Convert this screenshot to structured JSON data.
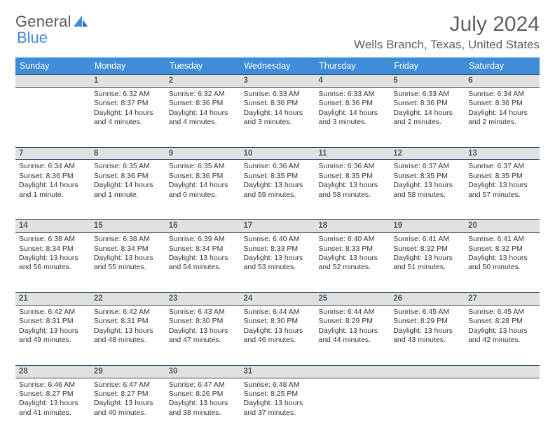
{
  "brand": {
    "part1": "General",
    "part2": "Blue"
  },
  "title": "July 2024",
  "location": "Wells Branch, Texas, United States",
  "colors": {
    "header_bg": "#3f8cd8",
    "header_text": "#ffffff",
    "daynum_bg": "#e1e1e1",
    "daynum_border": "#2b4b6e",
    "body_text": "#353535",
    "page_title": "#5b6166"
  },
  "dayNames": [
    "Sunday",
    "Monday",
    "Tuesday",
    "Wednesday",
    "Thursday",
    "Friday",
    "Saturday"
  ],
  "weeks": [
    {
      "nums": [
        "",
        "1",
        "2",
        "3",
        "4",
        "5",
        "6"
      ],
      "cells": [
        null,
        {
          "sr": "6:32 AM",
          "ss": "8:37 PM",
          "dl": "14 hours and 4 minutes."
        },
        {
          "sr": "6:32 AM",
          "ss": "8:36 PM",
          "dl": "14 hours and 4 minutes."
        },
        {
          "sr": "6:33 AM",
          "ss": "8:36 PM",
          "dl": "14 hours and 3 minutes."
        },
        {
          "sr": "6:33 AM",
          "ss": "8:36 PM",
          "dl": "14 hours and 3 minutes."
        },
        {
          "sr": "6:33 AM",
          "ss": "8:36 PM",
          "dl": "14 hours and 2 minutes."
        },
        {
          "sr": "6:34 AM",
          "ss": "8:36 PM",
          "dl": "14 hours and 2 minutes."
        }
      ]
    },
    {
      "nums": [
        "7",
        "8",
        "9",
        "10",
        "11",
        "12",
        "13"
      ],
      "cells": [
        {
          "sr": "6:34 AM",
          "ss": "8:36 PM",
          "dl": "14 hours and 1 minute."
        },
        {
          "sr": "6:35 AM",
          "ss": "8:36 PM",
          "dl": "14 hours and 1 minute."
        },
        {
          "sr": "6:35 AM",
          "ss": "8:36 PM",
          "dl": "14 hours and 0 minutes."
        },
        {
          "sr": "6:36 AM",
          "ss": "8:35 PM",
          "dl": "13 hours and 59 minutes."
        },
        {
          "sr": "6:36 AM",
          "ss": "8:35 PM",
          "dl": "13 hours and 58 minutes."
        },
        {
          "sr": "6:37 AM",
          "ss": "8:35 PM",
          "dl": "13 hours and 58 minutes."
        },
        {
          "sr": "6:37 AM",
          "ss": "8:35 PM",
          "dl": "13 hours and 57 minutes."
        }
      ]
    },
    {
      "nums": [
        "14",
        "15",
        "16",
        "17",
        "18",
        "19",
        "20"
      ],
      "cells": [
        {
          "sr": "6:38 AM",
          "ss": "8:34 PM",
          "dl": "13 hours and 56 minutes."
        },
        {
          "sr": "6:38 AM",
          "ss": "8:34 PM",
          "dl": "13 hours and 55 minutes."
        },
        {
          "sr": "6:39 AM",
          "ss": "8:34 PM",
          "dl": "13 hours and 54 minutes."
        },
        {
          "sr": "6:40 AM",
          "ss": "8:33 PM",
          "dl": "13 hours and 53 minutes."
        },
        {
          "sr": "6:40 AM",
          "ss": "8:33 PM",
          "dl": "13 hours and 52 minutes."
        },
        {
          "sr": "6:41 AM",
          "ss": "8:32 PM",
          "dl": "13 hours and 51 minutes."
        },
        {
          "sr": "6:41 AM",
          "ss": "8:32 PM",
          "dl": "13 hours and 50 minutes."
        }
      ]
    },
    {
      "nums": [
        "21",
        "22",
        "23",
        "24",
        "25",
        "26",
        "27"
      ],
      "cells": [
        {
          "sr": "6:42 AM",
          "ss": "8:31 PM",
          "dl": "13 hours and 49 minutes."
        },
        {
          "sr": "6:42 AM",
          "ss": "8:31 PM",
          "dl": "13 hours and 48 minutes."
        },
        {
          "sr": "6:43 AM",
          "ss": "8:30 PM",
          "dl": "13 hours and 47 minutes."
        },
        {
          "sr": "6:44 AM",
          "ss": "8:30 PM",
          "dl": "13 hours and 46 minutes."
        },
        {
          "sr": "6:44 AM",
          "ss": "8:29 PM",
          "dl": "13 hours and 44 minutes."
        },
        {
          "sr": "6:45 AM",
          "ss": "8:29 PM",
          "dl": "13 hours and 43 minutes."
        },
        {
          "sr": "6:45 AM",
          "ss": "8:28 PM",
          "dl": "13 hours and 42 minutes."
        }
      ]
    },
    {
      "nums": [
        "28",
        "29",
        "30",
        "31",
        "",
        "",
        ""
      ],
      "cells": [
        {
          "sr": "6:46 AM",
          "ss": "8:27 PM",
          "dl": "13 hours and 41 minutes."
        },
        {
          "sr": "6:47 AM",
          "ss": "8:27 PM",
          "dl": "13 hours and 40 minutes."
        },
        {
          "sr": "6:47 AM",
          "ss": "8:26 PM",
          "dl": "13 hours and 38 minutes."
        },
        {
          "sr": "6:48 AM",
          "ss": "8:25 PM",
          "dl": "13 hours and 37 minutes."
        },
        null,
        null,
        null
      ]
    }
  ]
}
